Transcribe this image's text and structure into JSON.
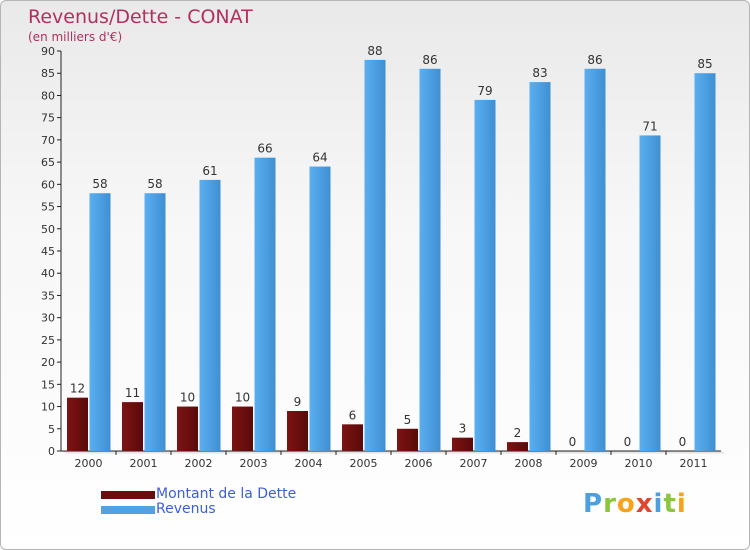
{
  "title": "Revenus/Dette - CONAT",
  "subtitle": "(en milliers d'€)",
  "logo_text": "Proxiti",
  "colors": {
    "debt": "#6b0d0d",
    "revenue": "#4fa3e3",
    "title": "#b03060",
    "legend_text": "#3d5fd6"
  },
  "chart_data": {
    "type": "bar",
    "categories": [
      "2000",
      "2001",
      "2002",
      "2003",
      "2004",
      "2005",
      "2006",
      "2007",
      "2008",
      "2009",
      "2010",
      "2011"
    ],
    "series": [
      {
        "name": "Montant de la Dette",
        "values": [
          12,
          11,
          10,
          10,
          9,
          6,
          5,
          3,
          2,
          0,
          0,
          0
        ]
      },
      {
        "name": "Revenus",
        "values": [
          58,
          58,
          61,
          66,
          64,
          88,
          86,
          79,
          83,
          86,
          71,
          85
        ]
      }
    ],
    "title": "Revenus/Dette - CONAT",
    "subtitle": "(en milliers d'€)",
    "xlabel": "",
    "ylabel": "",
    "ylim": [
      0,
      90
    ],
    "yticks": [
      0,
      5,
      10,
      15,
      20,
      25,
      30,
      35,
      40,
      45,
      50,
      55,
      60,
      65,
      70,
      75,
      80,
      85,
      90
    ],
    "grid": false,
    "legend_position": "bottom-left"
  }
}
